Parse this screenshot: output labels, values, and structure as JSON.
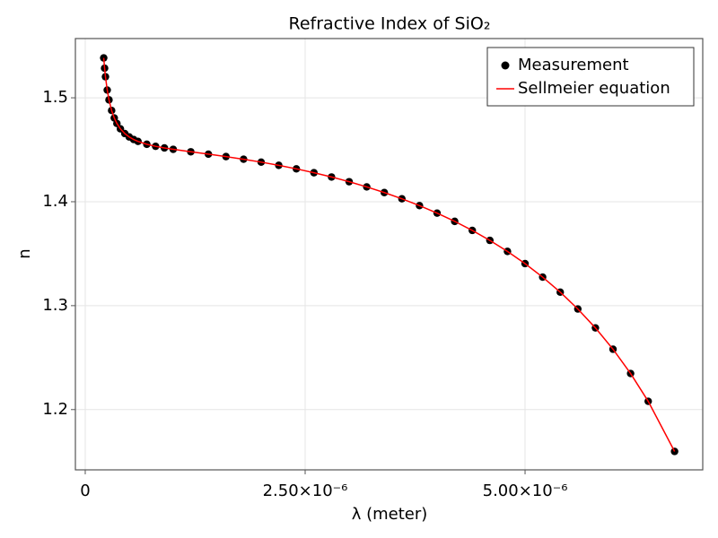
{
  "chart_data": {
    "type": "scatter",
    "title": "Refractive Index of SiO₂",
    "x_label": "λ (meter)",
    "y_label": "n",
    "xlim": [
      -1.12e-07,
      7.02e-06
    ],
    "ylim": [
      1.142,
      1.557
    ],
    "xticks": [
      0,
      {
        "value": 2.5e-06,
        "label": "2.50×10⁻⁶"
      },
      {
        "value": 5e-06,
        "label": "5.00×10⁻⁶"
      }
    ],
    "yticks": [
      1.2,
      1.3,
      1.4,
      1.5
    ],
    "grid": true,
    "legend": "upper right",
    "series": [
      {
        "name": "Measurement",
        "color": "#000000",
        "type": "scatter",
        "x": [
          2.1e-07,
          2.2e-07,
          2.3e-07,
          2.5e-07,
          2.7e-07,
          3e-07,
          3.3e-07,
          3.6e-07,
          4e-07,
          4.5e-07,
          5e-07,
          5.5e-07,
          6e-07,
          7e-07,
          8e-07,
          9e-07,
          1e-06,
          1.2e-06,
          1.4e-06,
          1.6e-06,
          1.8e-06,
          2e-06,
          2.2e-06,
          2.4e-06,
          2.6e-06,
          2.8e-06,
          3e-06,
          3.2e-06,
          3.4e-06,
          3.6e-06,
          3.8e-06,
          4e-06,
          4.2e-06,
          4.4e-06,
          4.6e-06,
          4.8e-06,
          5e-06,
          5.2e-06,
          5.4e-06,
          5.6e-06,
          5.8e-06,
          6e-06,
          6.2e-06,
          6.4e-06,
          6.7e-06
        ],
        "values": [
          1.53835,
          1.52845,
          1.52024,
          1.50745,
          1.498,
          1.4878,
          1.48059,
          1.47529,
          1.47012,
          1.46557,
          1.46233,
          1.45991,
          1.45804,
          1.45529,
          1.45331,
          1.45176,
          1.45042,
          1.44805,
          1.44578,
          1.44343,
          1.44088,
          1.43809,
          1.43503,
          1.43164,
          1.4279,
          1.42378,
          1.41926,
          1.41428,
          1.40882,
          1.40283,
          1.39626,
          1.38904,
          1.38111,
          1.37239,
          1.36279,
          1.35219,
          1.34046,
          1.32746,
          1.31298,
          1.29679,
          1.2786,
          1.25806,
          1.23471,
          1.20795,
          1.1597
        ]
      },
      {
        "name": "Sellmeier equation",
        "color": "#ff0000",
        "type": "line",
        "x": [
          2.1e-07,
          2.2e-07,
          2.3e-07,
          2.5e-07,
          2.7e-07,
          3e-07,
          3.3e-07,
          3.6e-07,
          4e-07,
          4.5e-07,
          5e-07,
          5.5e-07,
          6e-07,
          7e-07,
          8e-07,
          9e-07,
          1e-06,
          1.2e-06,
          1.4e-06,
          1.6e-06,
          1.8e-06,
          2e-06,
          2.2e-06,
          2.4e-06,
          2.6e-06,
          2.8e-06,
          3e-06,
          3.2e-06,
          3.4e-06,
          3.6e-06,
          3.8e-06,
          4e-06,
          4.2e-06,
          4.4e-06,
          4.6e-06,
          4.8e-06,
          5e-06,
          5.2e-06,
          5.4e-06,
          5.6e-06,
          5.8e-06,
          6e-06,
          6.2e-06,
          6.4e-06,
          6.7e-06
        ],
        "values": [
          1.53835,
          1.52845,
          1.52024,
          1.50745,
          1.498,
          1.4878,
          1.48059,
          1.47529,
          1.47012,
          1.46557,
          1.46233,
          1.45991,
          1.45804,
          1.45529,
          1.45331,
          1.45176,
          1.45042,
          1.44805,
          1.44578,
          1.44343,
          1.44088,
          1.43809,
          1.43503,
          1.43164,
          1.4279,
          1.42378,
          1.41926,
          1.41428,
          1.40882,
          1.40283,
          1.39626,
          1.38904,
          1.38111,
          1.37239,
          1.36279,
          1.35219,
          1.34046,
          1.32746,
          1.31298,
          1.29679,
          1.2786,
          1.25806,
          1.23471,
          1.20795,
          1.1597
        ]
      }
    ]
  }
}
